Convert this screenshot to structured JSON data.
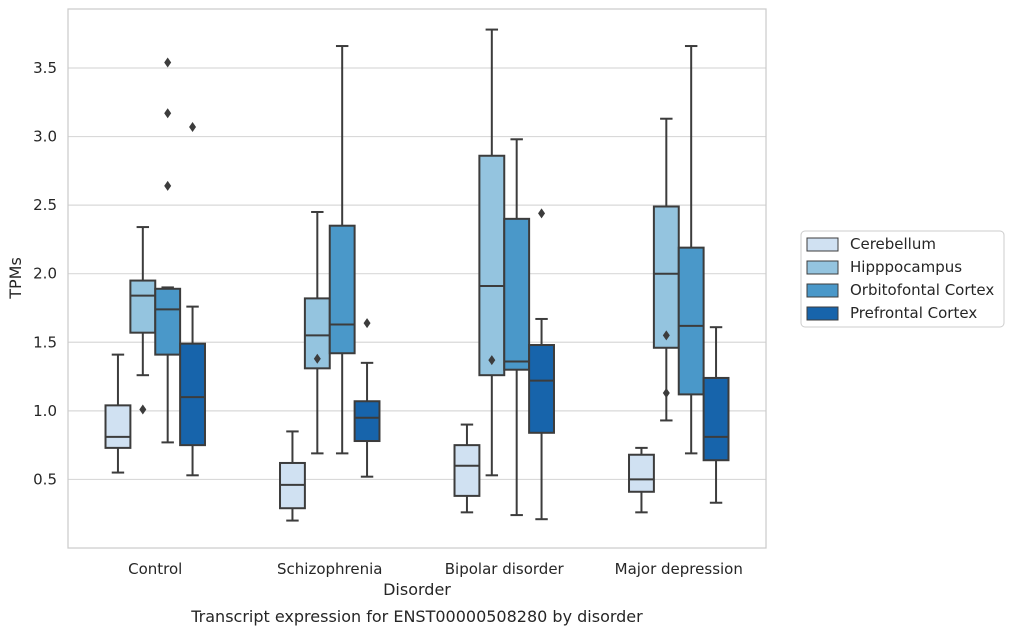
{
  "chart_data": {
    "type": "box",
    "xlabel": "Disorder",
    "ylabel": "TPMs",
    "caption": "Transcript expression for ENST00000508280 by disorder",
    "categories": [
      "Control",
      "Schizophrenia",
      "Bipolar disorder",
      "Major depression"
    ],
    "ylim": [
      0.0,
      3.93
    ],
    "yticks": [
      "0.5",
      "1.0",
      "1.5",
      "2.0",
      "2.5",
      "3.0",
      "3.5"
    ],
    "grid": "horizontal",
    "legend_position": "right",
    "series": [
      {
        "name": "Cerebellum",
        "color": "#d0e1f2",
        "boxes": [
          {
            "whisker_low": 0.55,
            "q1": 0.73,
            "median": 0.81,
            "q3": 1.04,
            "whisker_high": 1.41,
            "outliers": []
          },
          {
            "whisker_low": 0.2,
            "q1": 0.29,
            "median": 0.46,
            "q3": 0.62,
            "whisker_high": 0.85,
            "outliers": []
          },
          {
            "whisker_low": 0.26,
            "q1": 0.38,
            "median": 0.6,
            "q3": 0.75,
            "whisker_high": 0.9,
            "outliers": []
          },
          {
            "whisker_low": 0.26,
            "q1": 0.41,
            "median": 0.5,
            "q3": 0.68,
            "whisker_high": 0.73,
            "outliers": []
          }
        ]
      },
      {
        "name": "Hipppocampus",
        "color": "#94c4df",
        "boxes": [
          {
            "whisker_low": 1.26,
            "q1": 1.57,
            "median": 1.84,
            "q3": 1.95,
            "whisker_high": 2.34,
            "outliers": [
              1.01
            ]
          },
          {
            "whisker_low": 0.69,
            "q1": 1.31,
            "median": 1.55,
            "q3": 1.82,
            "whisker_high": 2.45,
            "outliers": [
              1.38
            ]
          },
          {
            "whisker_low": 0.53,
            "q1": 1.26,
            "median": 1.91,
            "q3": 2.86,
            "whisker_high": 3.78,
            "outliers": [
              1.37
            ]
          },
          {
            "whisker_low": 0.93,
            "q1": 1.46,
            "median": 2.0,
            "q3": 2.49,
            "whisker_high": 3.13,
            "outliers": [
              1.55,
              1.13
            ]
          }
        ]
      },
      {
        "name": "Orbitofontal Cortex",
        "color": "#4a98c9",
        "boxes": [
          {
            "whisker_low": 0.77,
            "q1": 1.41,
            "median": 1.74,
            "q3": 1.89,
            "whisker_high": 1.9,
            "outliers": [
              2.64,
              3.17,
              3.54
            ]
          },
          {
            "whisker_low": 0.69,
            "q1": 1.42,
            "median": 1.63,
            "q3": 2.35,
            "whisker_high": 3.66,
            "outliers": []
          },
          {
            "whisker_low": 0.24,
            "q1": 1.3,
            "median": 1.36,
            "q3": 2.4,
            "whisker_high": 2.98,
            "outliers": []
          },
          {
            "whisker_low": 0.69,
            "q1": 1.12,
            "median": 1.62,
            "q3": 2.19,
            "whisker_high": 3.66,
            "outliers": []
          }
        ]
      },
      {
        "name": "Prefrontal Cortex",
        "color": "#1764ab",
        "boxes": [
          {
            "whisker_low": 0.53,
            "q1": 0.75,
            "median": 1.1,
            "q3": 1.49,
            "whisker_high": 1.76,
            "outliers": [
              3.07
            ]
          },
          {
            "whisker_low": 0.52,
            "q1": 0.78,
            "median": 0.95,
            "q3": 1.07,
            "whisker_high": 1.35,
            "outliers": [
              1.64
            ]
          },
          {
            "whisker_low": 0.21,
            "q1": 0.84,
            "median": 1.22,
            "q3": 1.48,
            "whisker_high": 1.67,
            "outliers": [
              2.44
            ]
          },
          {
            "whisker_low": 0.33,
            "q1": 0.64,
            "median": 0.81,
            "q3": 1.24,
            "whisker_high": 1.61,
            "outliers": []
          }
        ]
      }
    ]
  }
}
